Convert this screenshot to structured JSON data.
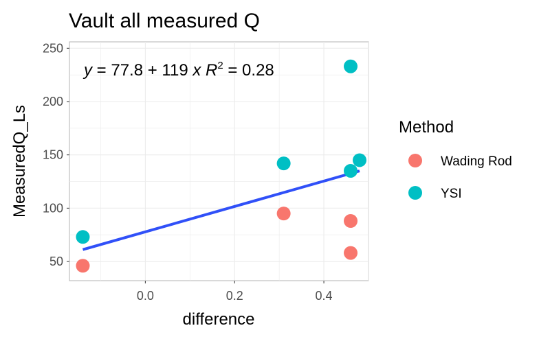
{
  "chart_data": {
    "type": "scatter",
    "title": "Vault all measured Q",
    "xlabel": "difference",
    "ylabel": "MeasuredQ_Ls",
    "xlim": [
      -0.17,
      0.5
    ],
    "ylim": [
      32,
      256
    ],
    "x_ticks": [
      "0.0",
      "0.2",
      "0.4"
    ],
    "x_tick_values": [
      0.0,
      0.2,
      0.4
    ],
    "y_ticks": [
      "50",
      "100",
      "150",
      "200",
      "250"
    ],
    "y_tick_values": [
      50,
      100,
      150,
      200,
      250
    ],
    "grid": true,
    "legend": {
      "title": "Method",
      "position": "right"
    },
    "series": [
      {
        "name": "Wading Rod",
        "color": "#F8766D",
        "points": [
          {
            "x": -0.14,
            "y": 46
          },
          {
            "x": 0.31,
            "y": 95
          },
          {
            "x": 0.46,
            "y": 88
          },
          {
            "x": 0.46,
            "y": 58
          }
        ]
      },
      {
        "name": "YSI",
        "color": "#00BFC4",
        "points": [
          {
            "x": -0.14,
            "y": 73
          },
          {
            "x": 0.31,
            "y": 142
          },
          {
            "x": 0.46,
            "y": 233
          },
          {
            "x": 0.46,
            "y": 135
          },
          {
            "x": 0.48,
            "y": 145
          }
        ]
      }
    ],
    "fit_line": {
      "color": "#3050F8",
      "intercept": 77.8,
      "slope": 119,
      "x_range": [
        -0.14,
        0.48
      ]
    },
    "annotation": {
      "y_part": "y",
      "eq_part": " = 77.8 + 119 ",
      "x_part": "x",
      "r_part": "R",
      "r_exp": "2",
      "r_val": " = 0.28"
    }
  }
}
